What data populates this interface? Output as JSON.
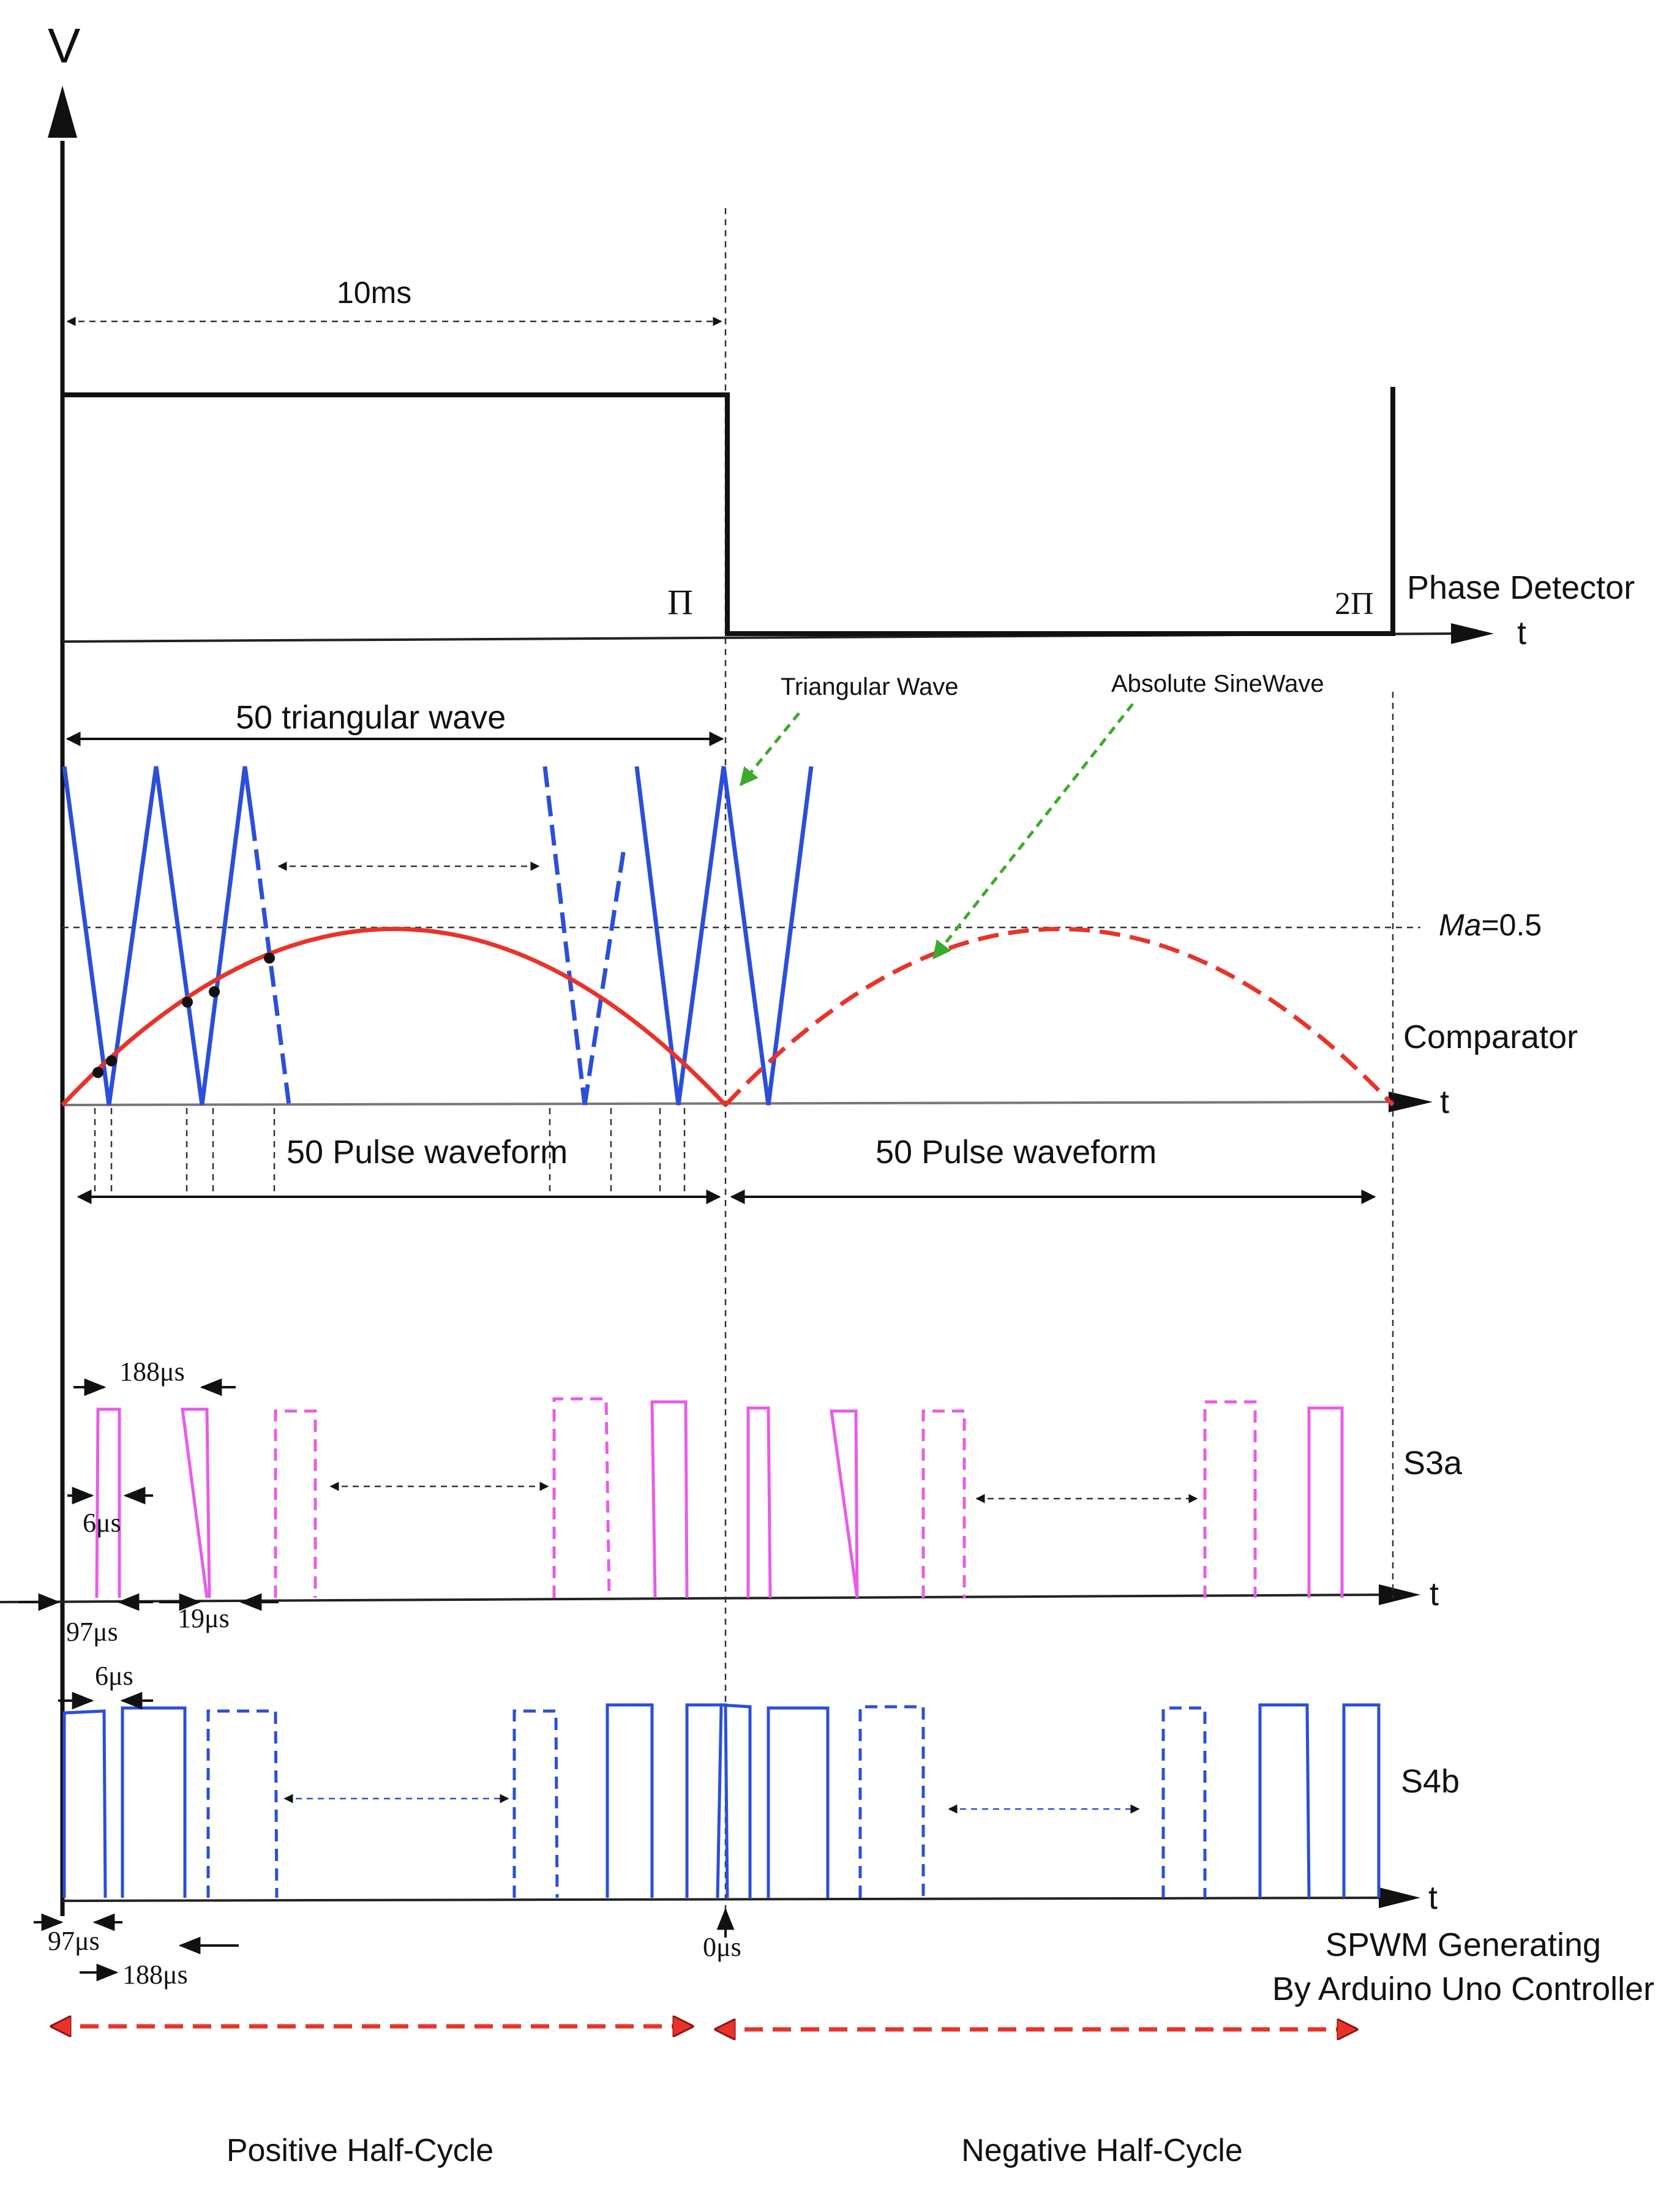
{
  "labels": {
    "v_axis": "V",
    "time_axis": "t",
    "pi": "Π",
    "two_pi": "2Π",
    "phase_detector": "Phase Detector",
    "period_10ms": "10ms",
    "triangular_count": "50 triangular wave",
    "triangular_wave": "Triangular Wave",
    "absolute_sinewave": "Absolute SineWave",
    "ma_prefix": "Ma",
    "ma_value": "=0.5",
    "comparator": "Comparator",
    "pulse_waveform_pos": "50 Pulse waveform",
    "pulse_waveform_neg": "50 Pulse waveform",
    "s3a": "S3a",
    "s4b": "S4b",
    "title_line1": "SPWM Generating",
    "title_line2": "By Arduino Uno Controller",
    "positive_half": "Positive Half-Cycle",
    "negative_half": "Negative Half-Cycle"
  },
  "timings": {
    "s3a_188": "188μs",
    "s3a_6": "6μs",
    "s3a_97": "97μs",
    "s3a_19": "19μs",
    "s4b_6": "6μs",
    "s4b_97": "97μs",
    "s4b_188": "188μs",
    "zero": "0μs"
  },
  "colors": {
    "triangle": "#2b4fd8",
    "sine": "#e8332b",
    "s3a": "#e85ce8",
    "s4b": "#2b4fd8",
    "pointer": "#3daa2c",
    "half_arrow": "#e8332b",
    "axis": "#111111"
  }
}
